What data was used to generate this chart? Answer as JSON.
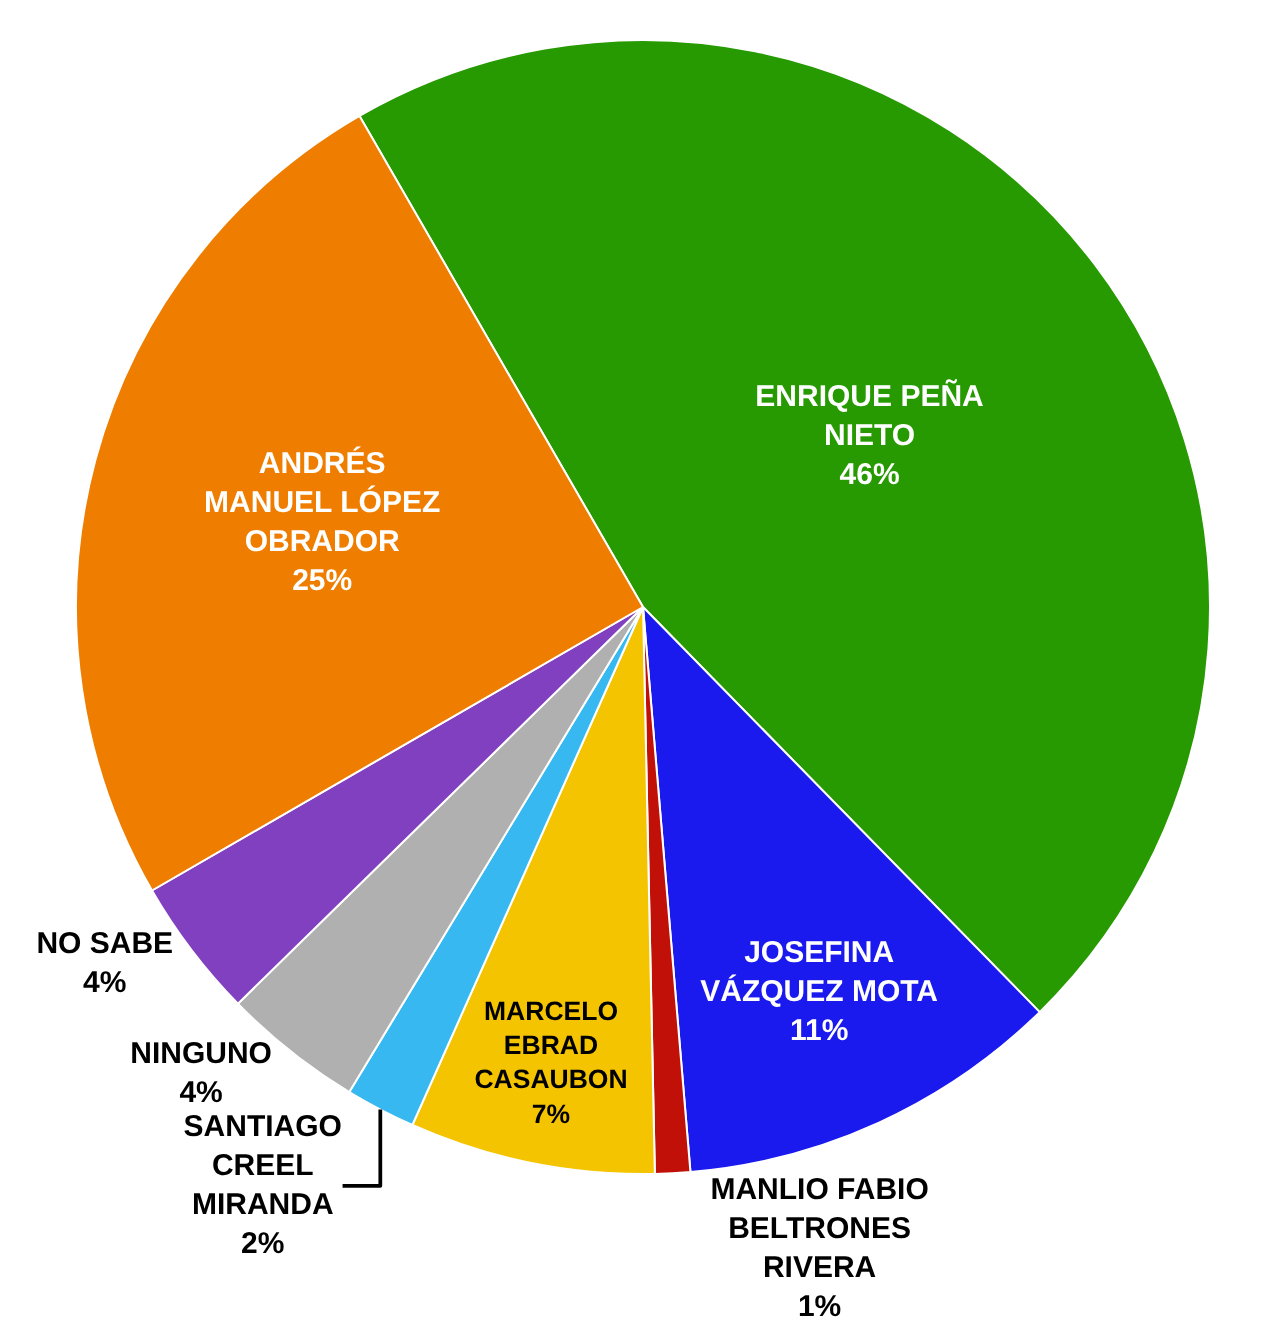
{
  "chart_data": {
    "type": "pie",
    "categories": [
      "ENRIQUE PEÑA NIETO",
      "JOSEFINA VÁZQUEZ MOTA",
      "MANLIO FABIO BELTRONES RIVERA",
      "MARCELO EBRAD CASAUBON",
      "SANTIAGO CREEL MIRANDA",
      "NINGUNO",
      "NO SABE",
      "ANDRÉS MANUEL LÓPEZ OBRADOR"
    ],
    "values": [
      46,
      11,
      1,
      7,
      2,
      4,
      4,
      25
    ],
    "colors": [
      "#269a00",
      "#1a1aee",
      "#c01008",
      "#f5c400",
      "#38b8f0",
      "#b0b0b0",
      "#8040c0",
      "#ee7d00"
    ],
    "value_labels": [
      "46%",
      "11%",
      "1%",
      "7%",
      "2%",
      "4%",
      "4%",
      "25%"
    ]
  }
}
